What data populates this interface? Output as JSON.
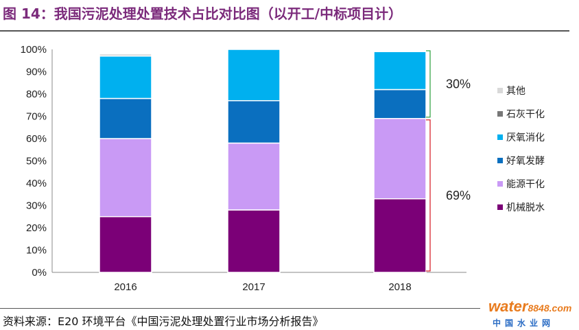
{
  "figure_title": "图 14：我国污泥处理处置技术占比对比图（以开工/中标项目计）",
  "source_text": "资料来源：E20 环境平台《中国污泥处理处置行业市场分析报告》",
  "watermark": {
    "brand": "water",
    "number": "8848",
    "suffix": ".com",
    "cn": "中国水业网"
  },
  "chart_data": {
    "type": "bar",
    "stacked": true,
    "title": "",
    "xlabel": "",
    "ylabel": "",
    "ylim": [
      0,
      100
    ],
    "categories": [
      "2016",
      "2017",
      "2018"
    ],
    "y_ticks": [
      "0%",
      "10%",
      "20%",
      "30%",
      "40%",
      "50%",
      "60%",
      "70%",
      "80%",
      "90%",
      "100%"
    ],
    "legend_position": "right",
    "series": [
      {
        "name": "机械脱水",
        "color": "#7b0077",
        "values": [
          25,
          28,
          33
        ]
      },
      {
        "name": "能源干化",
        "color": "#c99af5",
        "values": [
          35,
          30,
          36
        ]
      },
      {
        "name": "好氧发酵",
        "color": "#0a6fbf",
        "values": [
          18,
          19,
          13
        ]
      },
      {
        "name": "厌氧消化",
        "color": "#00b0ef",
        "values": [
          19,
          23,
          17
        ]
      },
      {
        "name": "石灰干化",
        "color": "#777777",
        "values": [
          0,
          0,
          0
        ]
      },
      {
        "name": "其他",
        "color": "#d9d9d9",
        "values": [
          1,
          0,
          0
        ]
      }
    ],
    "annotations": [
      {
        "text": "30%",
        "from": 69,
        "to": 100,
        "bracket_color": "#3aa64a"
      },
      {
        "text": "69%",
        "from": 0,
        "to": 69,
        "bracket_color": "#d9262e"
      }
    ]
  }
}
